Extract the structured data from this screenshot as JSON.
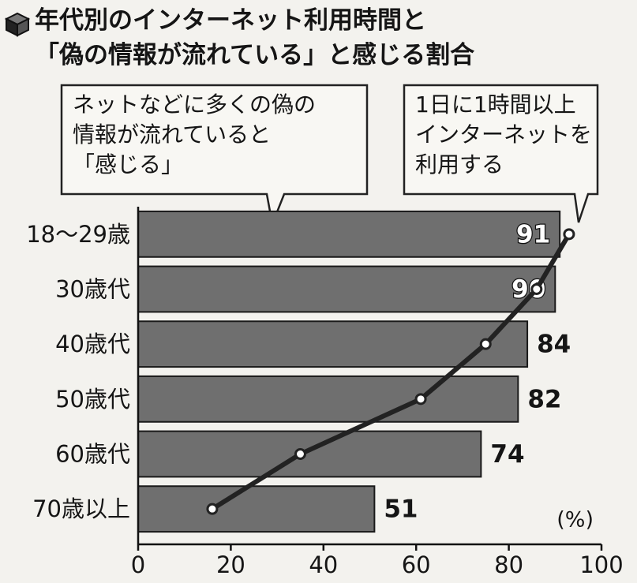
{
  "chart_data": {
    "type": "bar",
    "orientation": "horizontal",
    "title": "年代別のインターネット利用時間と\n「偽の情報が流れている」と感じる割合",
    "categories": [
      "18〜29歳",
      "30歳代",
      "40歳代",
      "50歳代",
      "60歳代",
      "70歳以上"
    ],
    "series": [
      {
        "name": "ネットなどに多くの偽の\n情報が流れていると\n「感じる」",
        "type": "bar",
        "color": "#6f6f6f",
        "values": [
          91,
          90,
          84,
          82,
          74,
          51
        ]
      },
      {
        "name": "1日に1時間以上\nインターネットを\n利用する",
        "type": "line",
        "color": "#222222",
        "values": [
          93,
          86,
          75,
          61,
          35,
          16
        ]
      }
    ],
    "xlim": [
      0,
      100
    ],
    "xticks": [
      0,
      20,
      40,
      60,
      80,
      100
    ],
    "xlabel": "(%)"
  }
}
